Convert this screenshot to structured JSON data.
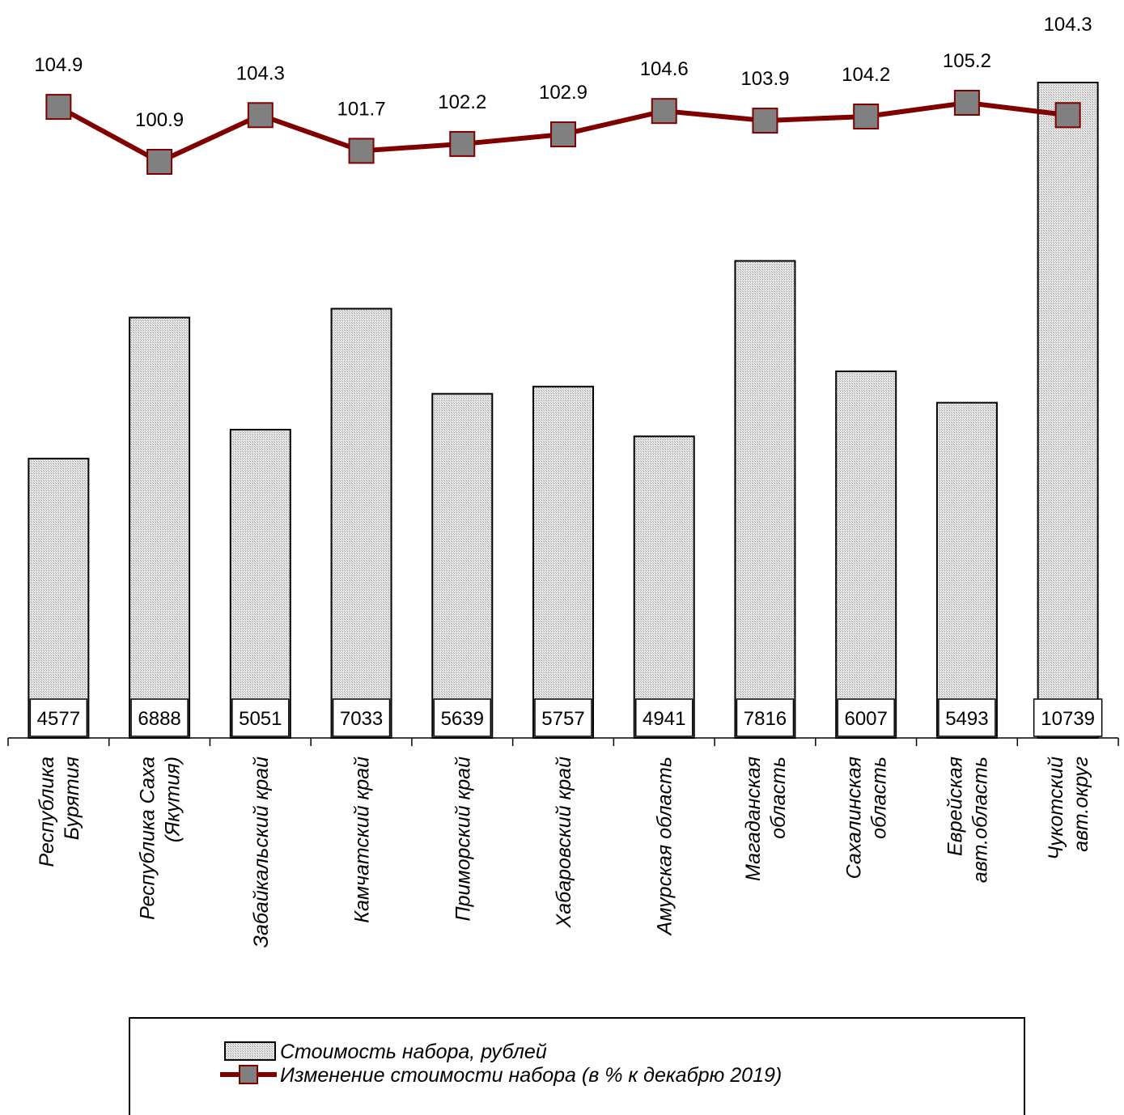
{
  "chart_data": {
    "type": "bar",
    "categories": [
      [
        "Республика",
        "Бурятия"
      ],
      [
        "Республика Саха",
        "(Якутия)"
      ],
      [
        "Забайкальский край"
      ],
      [
        "Камчатский край"
      ],
      [
        "Приморский край"
      ],
      [
        "Хабаровский край"
      ],
      [
        "Амурская область"
      ],
      [
        "Магаданская",
        "область"
      ],
      [
        "Сахалинская",
        "область"
      ],
      [
        "Еврейская",
        "авт.область"
      ],
      [
        "Чукотский",
        "авт.округ"
      ]
    ],
    "series": [
      {
        "name": "Стоимость набора, рублей",
        "type": "bar",
        "values": [
          4577,
          6888,
          5051,
          7033,
          5639,
          5757,
          4941,
          7816,
          6007,
          5493,
          10739
        ],
        "labels": [
          "4577",
          "6888",
          "5051",
          "7033",
          "5639",
          "5757",
          "4941",
          "7816",
          "6007",
          "5493",
          "10739"
        ],
        "fill": "#d9d9d9"
      },
      {
        "name": "Изменение стоимости набора (в % к  декабрю 2019)",
        "type": "line",
        "values": [
          104.9,
          100.9,
          104.3,
          101.7,
          102.2,
          102.9,
          104.6,
          103.9,
          104.2,
          105.2,
          104.3
        ],
        "labels": [
          "104.9",
          "100.9",
          "104.3",
          "101.7",
          "102.2",
          "102.9",
          "104.6",
          "103.9",
          "104.2",
          "105.2",
          "104.3"
        ],
        "line_color": "#800000",
        "marker_color": "#808080"
      }
    ],
    "ylim_bar": [
      0,
      10739
    ],
    "legend_position": "bottom",
    "grid": false
  }
}
